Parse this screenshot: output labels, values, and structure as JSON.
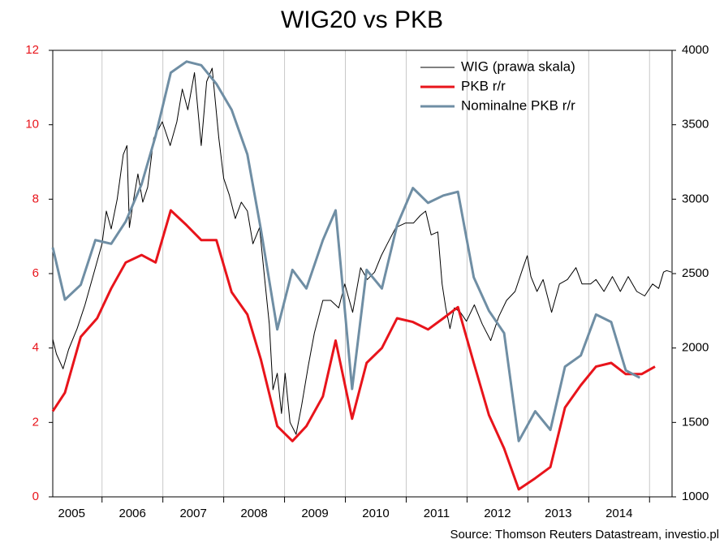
{
  "chart_data": {
    "type": "line",
    "title": "WIG20 vs PKB",
    "source": "Source: Thomson Reuters Datastream, investio.pl",
    "xlim": [
      2005.19,
      2015.37
    ],
    "xticks": [
      {
        "value": 2005.5,
        "label": "2005"
      },
      {
        "value": 2006.5,
        "label": "2006"
      },
      {
        "value": 2007.5,
        "label": "2007"
      },
      {
        "value": 2008.5,
        "label": "2008"
      },
      {
        "value": 2009.5,
        "label": "2009"
      },
      {
        "value": 2010.5,
        "label": "2010"
      },
      {
        "value": 2011.5,
        "label": "2011"
      },
      {
        "value": 2012.5,
        "label": "2012"
      },
      {
        "value": 2013.5,
        "label": "2013"
      },
      {
        "value": 2014.5,
        "label": "2014"
      }
    ],
    "ylim": [
      0,
      12
    ],
    "yticks": [
      0,
      2,
      4,
      6,
      8,
      10,
      12
    ],
    "y_tick_color": "#e8141b",
    "y2lim": [
      1000,
      4000
    ],
    "y2ticks": [
      1000,
      1500,
      2000,
      2500,
      3000,
      3500,
      4000
    ],
    "grid": true,
    "legend": "top-right",
    "series": [
      {
        "name": "WIG (prawa skala)",
        "color": "#000000",
        "width": 1,
        "axis": "y2",
        "x": [
          2005.19,
          2005.25,
          2005.36,
          2005.45,
          2005.59,
          2005.72,
          2005.89,
          2006.0,
          2006.07,
          2006.15,
          2006.25,
          2006.35,
          2006.41,
          2006.45,
          2006.52,
          2006.59,
          2006.67,
          2006.75,
          2006.85,
          2006.99,
          2007.12,
          2007.23,
          2007.32,
          2007.41,
          2007.52,
          2007.63,
          2007.72,
          2007.81,
          2007.92,
          2008.0,
          2008.09,
          2008.19,
          2008.29,
          2008.39,
          2008.48,
          2008.59,
          2008.67,
          2008.75,
          2008.81,
          2008.88,
          2008.95,
          2009.01,
          2009.09,
          2009.19,
          2009.28,
          2009.39,
          2009.49,
          2009.63,
          2009.76,
          2009.89,
          2009.99,
          2010.12,
          2010.25,
          2010.36,
          2010.48,
          2010.59,
          2010.69,
          2010.83,
          2010.99,
          2011.12,
          2011.23,
          2011.32,
          2011.41,
          2011.52,
          2011.59,
          2011.65,
          2011.72,
          2011.79,
          2011.89,
          2011.99,
          2012.12,
          2012.25,
          2012.39,
          2012.52,
          2012.65,
          2012.79,
          2012.92,
          2012.99,
          2013.05,
          2013.15,
          2013.25,
          2013.39,
          2013.52,
          2013.65,
          2013.79,
          2013.89,
          2014.03,
          2014.12,
          2014.25,
          2014.39,
          2014.52,
          2014.65,
          2014.79,
          2014.92,
          2015.05,
          2015.15,
          2015.23,
          2015.28,
          2015.36
        ],
        "values": [
          2060,
          1960,
          1860,
          1990,
          2130,
          2290,
          2540,
          2700,
          2920,
          2800,
          3000,
          3300,
          3360,
          2810,
          3000,
          3170,
          2980,
          3080,
          3410,
          3520,
          3360,
          3520,
          3740,
          3600,
          3850,
          3360,
          3790,
          3880,
          3410,
          3140,
          3030,
          2870,
          2980,
          2920,
          2700,
          2810,
          2480,
          2160,
          1720,
          1830,
          1560,
          1830,
          1500,
          1420,
          1610,
          1880,
          2100,
          2320,
          2320,
          2270,
          2430,
          2240,
          2540,
          2460,
          2510,
          2620,
          2700,
          2810,
          2840,
          2840,
          2890,
          2920,
          2760,
          2780,
          2430,
          2270,
          2130,
          2270,
          2240,
          2180,
          2290,
          2160,
          2050,
          2210,
          2320,
          2380,
          2540,
          2620,
          2480,
          2380,
          2460,
          2240,
          2430,
          2460,
          2540,
          2430,
          2430,
          2460,
          2380,
          2480,
          2380,
          2480,
          2380,
          2350,
          2430,
          2400,
          2510,
          2520,
          2510
        ]
      },
      {
        "name": "PKB r/r",
        "color": "#e8141b",
        "width": 3,
        "x": [
          2005.19,
          2005.39,
          2005.65,
          2005.92,
          2006.15,
          2006.39,
          2006.65,
          2006.88,
          2007.13,
          2007.39,
          2007.63,
          2007.88,
          2008.13,
          2008.39,
          2008.61,
          2008.88,
          2009.13,
          2009.36,
          2009.63,
          2009.84,
          2010.11,
          2010.35,
          2010.6,
          2010.85,
          2011.11,
          2011.36,
          2011.61,
          2011.85,
          2012.11,
          2012.36,
          2012.61,
          2012.85,
          2013.12,
          2013.37,
          2013.61,
          2013.87,
          2014.12,
          2014.37,
          2014.61,
          2014.87,
          2015.09
        ],
        "values": [
          2.3,
          2.8,
          4.3,
          4.8,
          5.6,
          6.3,
          6.5,
          6.3,
          7.7,
          7.3,
          6.9,
          6.9,
          5.5,
          4.9,
          3.7,
          1.9,
          1.5,
          1.9,
          2.7,
          4.2,
          2.1,
          3.6,
          4.0,
          4.8,
          4.7,
          4.5,
          4.8,
          5.1,
          3.6,
          2.2,
          1.3,
          0.2,
          0.5,
          0.8,
          2.4,
          3.0,
          3.5,
          3.6,
          3.3,
          3.3,
          3.5
        ]
      },
      {
        "name": "Nominalne PKB r/r",
        "color": "#6f8ea4",
        "width": 3,
        "x": [
          2005.19,
          2005.39,
          2005.65,
          2005.89,
          2006.15,
          2006.39,
          2006.65,
          2006.88,
          2007.13,
          2007.39,
          2007.63,
          2007.88,
          2008.13,
          2008.39,
          2008.61,
          2008.88,
          2009.13,
          2009.36,
          2009.63,
          2009.84,
          2010.11,
          2010.35,
          2010.6,
          2010.85,
          2011.11,
          2011.36,
          2011.61,
          2011.85,
          2012.11,
          2012.36,
          2012.61,
          2012.85,
          2013.12,
          2013.37,
          2013.61,
          2013.87,
          2014.12,
          2014.37,
          2014.61,
          2014.84
        ],
        "values": [
          6.7,
          5.3,
          5.7,
          6.9,
          6.8,
          7.4,
          8.4,
          9.7,
          11.4,
          11.7,
          11.6,
          11.1,
          10.4,
          9.2,
          7.2,
          4.5,
          6.1,
          5.6,
          6.9,
          7.7,
          2.9,
          6.1,
          5.6,
          7.3,
          8.3,
          7.9,
          8.1,
          8.2,
          5.9,
          5.0,
          4.4,
          1.5,
          2.3,
          1.8,
          3.5,
          3.8,
          4.9,
          4.7,
          3.4,
          3.2
        ]
      }
    ]
  }
}
